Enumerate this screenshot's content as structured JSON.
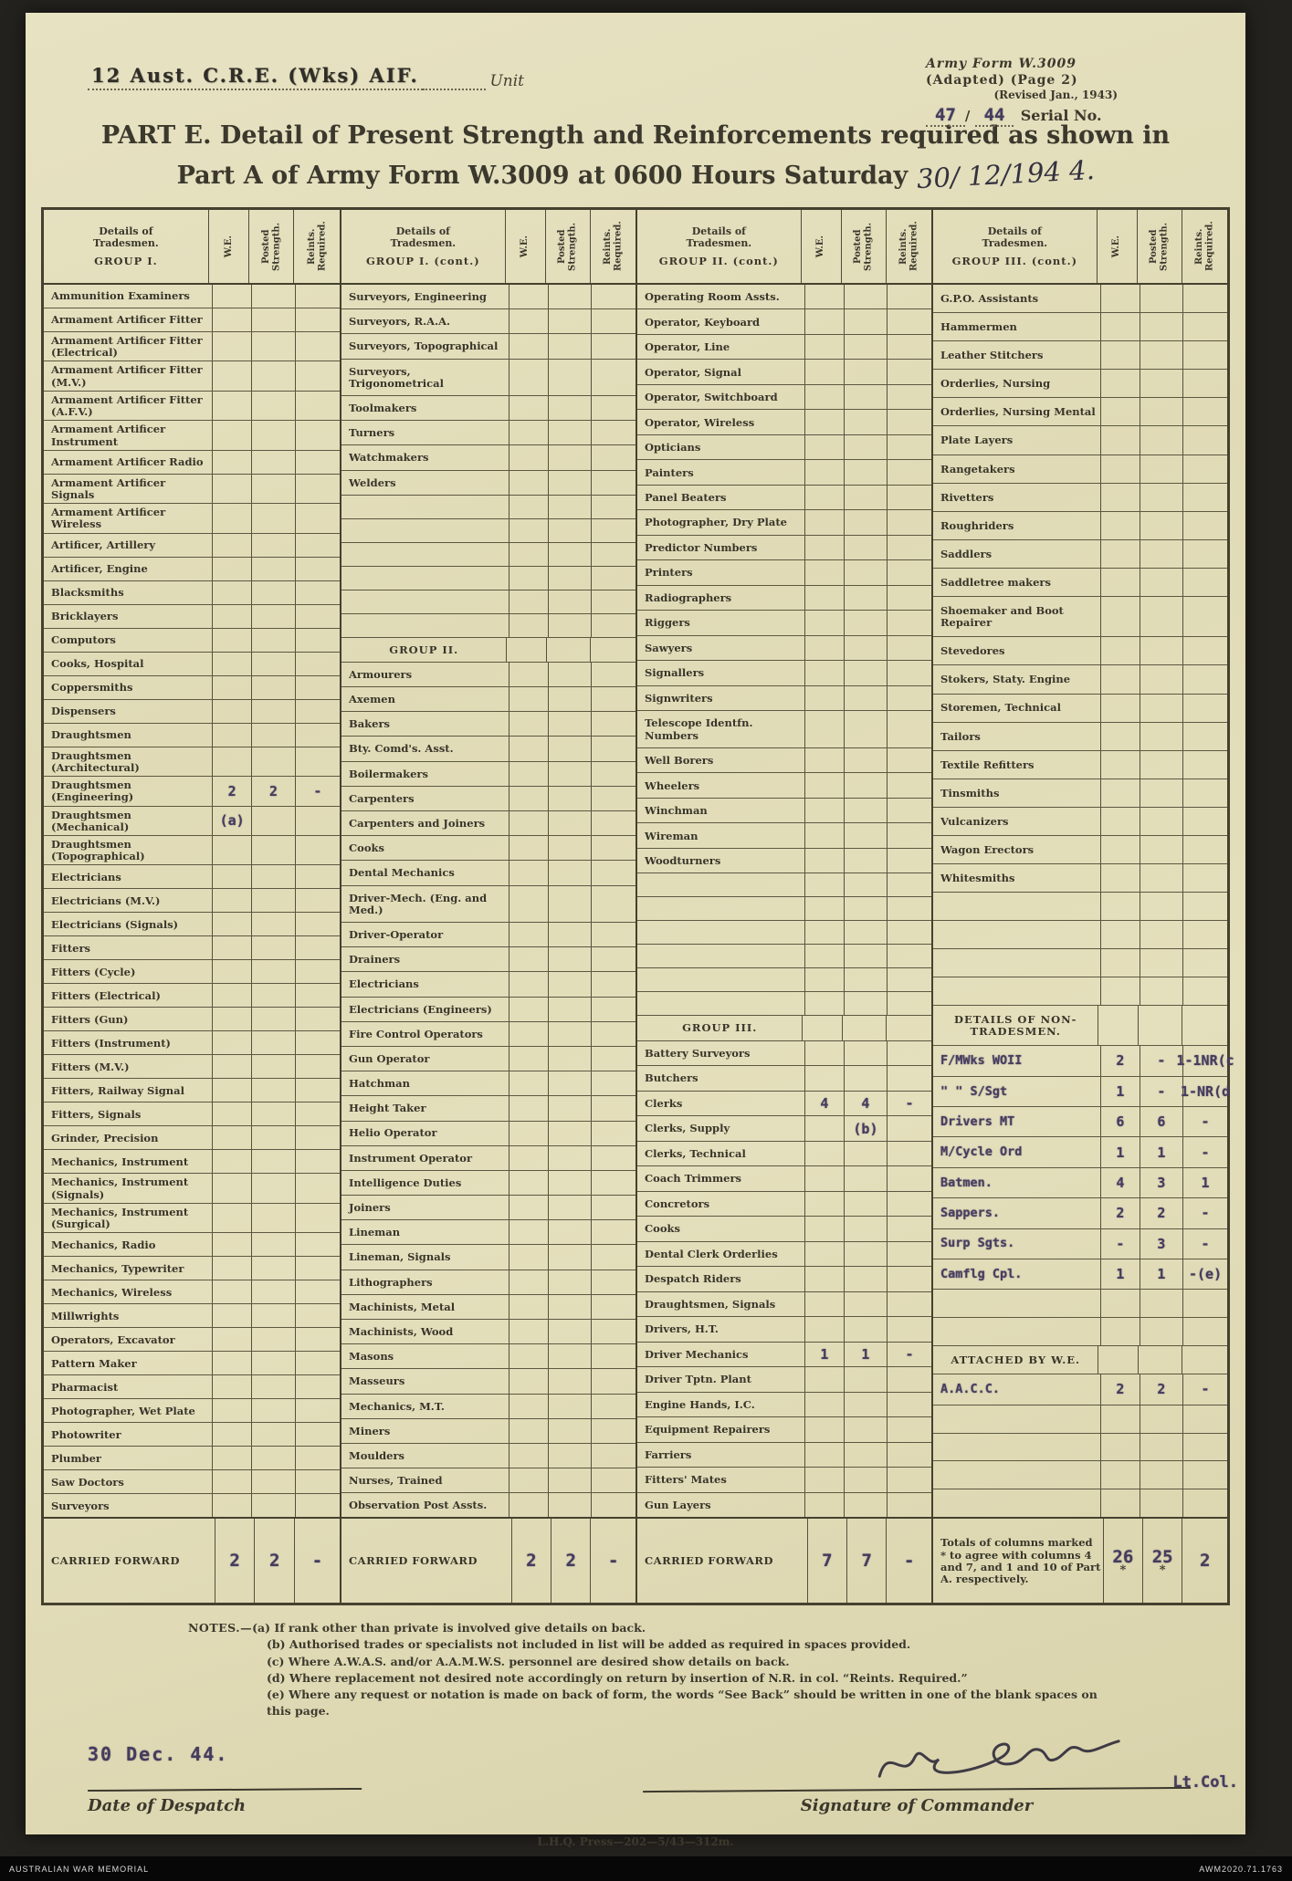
{
  "header": {
    "unit_name": "12 Aust. C.R.E. (Wks) AIF.",
    "unit_label": "Unit",
    "form_name": "Army Form W.3009",
    "form_line2": "(Adapted)  (Page 2)",
    "form_line3": "(Revised Jan., 1943)",
    "serial_value1": "47",
    "serial_value2": "44",
    "serial_label": "Serial No.",
    "title_line1": "PART E.  Detail of Present Strength and Reinforcements required as shown in",
    "title_line2_pre": "Part A of Army Form W.3009 at 0600 Hours Saturday",
    "title_date": "30/ 12/194 4."
  },
  "table": {
    "column_headers": {
      "details_line1": "Details of",
      "details_line2": "Tradesmen.",
      "we": "W.E.",
      "posted": "Posted Strength.",
      "reints": "Reints. Required."
    },
    "groups": [
      {
        "name": "GROUP I.",
        "rows": [
          {
            "t": "Ammunition Examiners"
          },
          {
            "t": "Armament Artificer Fitter"
          },
          {
            "t": "Armament Artificer Fitter (Electrical)"
          },
          {
            "t": "Armament Artificer Fitter (M.V.)"
          },
          {
            "t": "Armament Artificer Fitter (A.F.V.)"
          },
          {
            "t": "Armament Artificer Instrument"
          },
          {
            "t": "Armament Artificer Radio"
          },
          {
            "t": "Armament Artificer Signals"
          },
          {
            "t": "Armament Artificer Wireless"
          },
          {
            "t": "Artificer, Artillery"
          },
          {
            "t": "Artificer, Engine"
          },
          {
            "t": "Blacksmiths"
          },
          {
            "t": "Bricklayers"
          },
          {
            "t": "Computors"
          },
          {
            "t": "Cooks, Hospital"
          },
          {
            "t": "Coppersmiths"
          },
          {
            "t": "Dispensers"
          },
          {
            "t": "Draughtsmen"
          },
          {
            "t": "Draughtsmen (Architectural)"
          },
          {
            "t": "Draughtsmen (Engineering)",
            "we": "2",
            "p": "2",
            "r": "-"
          },
          {
            "t": "Draughtsmen (Mechanical)",
            "we": "(a)"
          },
          {
            "t": "Draughtsmen (Topographical)"
          },
          {
            "t": "Electricians"
          },
          {
            "t": "Electricians (M.V.)"
          },
          {
            "t": "Electricians (Signals)"
          },
          {
            "t": "Fitters"
          },
          {
            "t": "Fitters (Cycle)"
          },
          {
            "t": "Fitters (Electrical)"
          },
          {
            "t": "Fitters (Gun)"
          },
          {
            "t": "Fitters (Instrument)"
          },
          {
            "t": "Fitters (M.V.)"
          },
          {
            "t": "Fitters, Railway Signal"
          },
          {
            "t": "Fitters, Signals"
          },
          {
            "t": "Grinder, Precision"
          },
          {
            "t": "Mechanics, Instrument"
          },
          {
            "t": "Mechanics, Instrument (Signals)"
          },
          {
            "t": "Mechanics, Instrument (Surgical)"
          },
          {
            "t": "Mechanics, Radio"
          },
          {
            "t": "Mechanics, Typewriter"
          },
          {
            "t": "Mechanics, Wireless"
          },
          {
            "t": "Millwrights"
          },
          {
            "t": "Operators, Excavator"
          },
          {
            "t": "Pattern  Maker"
          },
          {
            "t": "Pharmacist"
          },
          {
            "t": "Photographer, Wet Plate"
          },
          {
            "t": "Photowriter"
          },
          {
            "t": "Plumber"
          },
          {
            "t": "Saw Doctors"
          },
          {
            "t": "Surveyors"
          }
        ]
      },
      {
        "name": "GROUP I. (cont.)",
        "rows": [
          {
            "t": "Surveyors, Engineering"
          },
          {
            "t": "Surveyors, R.A.A."
          },
          {
            "t": "Surveyors, Topographical"
          },
          {
            "t": "Surveyors, Trigonometrical"
          },
          {
            "t": "Toolmakers"
          },
          {
            "t": "Turners"
          },
          {
            "t": "Watchmakers"
          },
          {
            "t": "Welders"
          },
          {
            "k": "blank"
          },
          {
            "k": "blank"
          },
          {
            "k": "blank"
          },
          {
            "k": "blank"
          },
          {
            "k": "blank"
          },
          {
            "k": "blank"
          },
          {
            "t": "GROUP II.",
            "k": "section"
          },
          {
            "t": "Armourers"
          },
          {
            "t": "Axemen"
          },
          {
            "t": "Bakers"
          },
          {
            "t": "Bty. Comd's. Asst."
          },
          {
            "t": "Boilermakers"
          },
          {
            "t": "Carpenters"
          },
          {
            "t": "Carpenters and Joiners"
          },
          {
            "t": "Cooks"
          },
          {
            "t": "Dental Mechanics"
          },
          {
            "t": "Driver-Mech. (Eng. and Med.)"
          },
          {
            "t": "Driver-Operator"
          },
          {
            "t": "Drainers"
          },
          {
            "t": "Electricians"
          },
          {
            "t": "Electricians (Engineers)"
          },
          {
            "t": "Fire Control Operators"
          },
          {
            "t": "Gun Operator"
          },
          {
            "t": "Hatchman"
          },
          {
            "t": "Height Taker"
          },
          {
            "t": "Helio Operator"
          },
          {
            "t": "Instrument Operator"
          },
          {
            "t": "Intelligence Duties"
          },
          {
            "t": "Joiners"
          },
          {
            "t": "Lineman"
          },
          {
            "t": "Lineman, Signals"
          },
          {
            "t": "Lithographers"
          },
          {
            "t": "Machinists, Metal"
          },
          {
            "t": "Machinists, Wood"
          },
          {
            "t": "Masons"
          },
          {
            "t": "Masseurs"
          },
          {
            "t": "Mechanics, M.T."
          },
          {
            "t": "Miners"
          },
          {
            "t": "Moulders"
          },
          {
            "t": "Nurses, Trained"
          },
          {
            "t": "Observation Post Assts."
          }
        ]
      },
      {
        "name": "GROUP II. (cont.)",
        "rows": [
          {
            "t": "Operating Room Assts."
          },
          {
            "t": "Operator, Keyboard"
          },
          {
            "t": "Operator, Line"
          },
          {
            "t": "Operator, Signal"
          },
          {
            "t": "Operator, Switchboard"
          },
          {
            "t": "Operator, Wireless"
          },
          {
            "t": "Opticians"
          },
          {
            "t": "Painters"
          },
          {
            "t": "Panel Beaters"
          },
          {
            "t": "Photographer, Dry Plate"
          },
          {
            "t": "Predictor Numbers"
          },
          {
            "t": "Printers"
          },
          {
            "t": "Radiographers"
          },
          {
            "t": "Riggers"
          },
          {
            "t": "Sawyers"
          },
          {
            "t": "Signallers"
          },
          {
            "t": "Signwriters"
          },
          {
            "t": "Telescope Identfn. Numbers"
          },
          {
            "t": "Well Borers"
          },
          {
            "t": "Wheelers"
          },
          {
            "t": "Winchman"
          },
          {
            "t": "Wireman"
          },
          {
            "t": "Woodturners"
          },
          {
            "k": "blank"
          },
          {
            "k": "blank"
          },
          {
            "k": "blank"
          },
          {
            "k": "blank"
          },
          {
            "k": "blank"
          },
          {
            "k": "blank"
          },
          {
            "t": "GROUP III.",
            "k": "section"
          },
          {
            "t": "Battery Surveyors"
          },
          {
            "t": "Butchers"
          },
          {
            "t": "Clerks",
            "we": "4",
            "p": "4",
            "r": "-"
          },
          {
            "t": "Clerks, Supply",
            "p": "(b)"
          },
          {
            "t": "Clerks, Technical"
          },
          {
            "t": "Coach Trimmers"
          },
          {
            "t": "Concretors"
          },
          {
            "t": "Cooks"
          },
          {
            "t": "Dental Clerk Orderlies"
          },
          {
            "t": "Despatch Riders"
          },
          {
            "t": "Draughtsmen, Signals"
          },
          {
            "t": "Drivers, H.T."
          },
          {
            "t": "Driver Mechanics",
            "we": "1",
            "p": "1",
            "r": "-"
          },
          {
            "t": "Driver Tptn. Plant"
          },
          {
            "t": "Engine Hands, I.C."
          },
          {
            "t": "Equipment Repairers"
          },
          {
            "t": "Farriers"
          },
          {
            "t": "Fitters' Mates"
          },
          {
            "t": "Gun Layers"
          }
        ]
      },
      {
        "name": "GROUP III. (cont.)",
        "rows": [
          {
            "t": "G.P.O. Assistants"
          },
          {
            "t": "Hammermen"
          },
          {
            "t": "Leather Stitchers"
          },
          {
            "t": "Orderlies, Nursing"
          },
          {
            "t": "Orderlies, Nursing Mental"
          },
          {
            "t": "Plate Layers"
          },
          {
            "t": "Rangetakers"
          },
          {
            "t": "Rivetters"
          },
          {
            "t": "Roughriders"
          },
          {
            "t": "Saddlers"
          },
          {
            "t": "Saddletree makers"
          },
          {
            "t": "Shoemaker and Boot Repairer"
          },
          {
            "t": "Stevedores"
          },
          {
            "t": "Stokers, Staty. Engine"
          },
          {
            "t": "Storemen, Technical"
          },
          {
            "t": "Tailors"
          },
          {
            "t": "Textile Refitters"
          },
          {
            "t": "Tinsmiths"
          },
          {
            "t": "Vulcanizers"
          },
          {
            "t": "Wagon Erectors"
          },
          {
            "t": "Whitesmiths"
          },
          {
            "k": "blank"
          },
          {
            "k": "blank"
          },
          {
            "k": "blank"
          },
          {
            "k": "blank"
          },
          {
            "t": "DETAILS OF NON-TRADESMEN.",
            "k": "subhead"
          },
          {
            "t": "F/MWks WOII",
            "k": "typed",
            "we": "2",
            "p": "-",
            "r": "1-1NR(c"
          },
          {
            "t": "\"  \"  S/Sgt",
            "k": "typed",
            "we": "1",
            "p": "-",
            "r": "1-NR(d"
          },
          {
            "t": "Drivers MT",
            "k": "typed",
            "we": "6",
            "p": "6",
            "r": "-"
          },
          {
            "t": "M/Cycle Ord",
            "k": "typed",
            "we": "1",
            "p": "1",
            "r": "-"
          },
          {
            "t": "Batmen.",
            "k": "typed",
            "we": "4",
            "p": "3",
            "r": "1"
          },
          {
            "t": "Sappers.",
            "k": "typed",
            "we": "2",
            "p": "2",
            "r": "-"
          },
          {
            "t": "Surp Sgts.",
            "k": "typed",
            "we": "-",
            "p": "3",
            "r": "-"
          },
          {
            "t": "Camflg Cpl.",
            "k": "typed",
            "we": "1",
            "p": "1",
            "r": "-(e)"
          },
          {
            "k": "blank"
          },
          {
            "k": "blank"
          },
          {
            "t": "ATTACHED BY W.E.",
            "k": "subhead"
          },
          {
            "t": "A.A.C.C.",
            "k": "typed",
            "we": "2",
            "p": "2",
            "r": "-"
          },
          {
            "k": "blank"
          },
          {
            "k": "blank"
          },
          {
            "k": "blank"
          },
          {
            "k": "blank"
          }
        ]
      }
    ],
    "carried_forward": {
      "label": "CARRIED FORWARD",
      "totals_note": "Totals of columns marked * to agree with columns 4 and 7, and 1 and 10 of Part A. respectively.",
      "values": [
        {
          "we": "2",
          "p": "2",
          "r": "-"
        },
        {
          "we": "2",
          "p": "2",
          "r": "-"
        },
        {
          "we": "7",
          "p": "7",
          "r": "-"
        },
        {
          "we": "26",
          "p": "25",
          "r": "2",
          "we_sub": "*",
          "p_sub": "*"
        }
      ]
    }
  },
  "notes": {
    "prefix": "NOTES.—",
    "items": [
      "(a) If rank other than private is involved give details on back.",
      "(b) Authorised trades or specialists not included in list will be added as required in spaces provided.",
      "(c) Where A.W.A.S. and/or A.A.M.W.S. personnel are desired show details on back.",
      "(d) Where replacement not desired note accordingly on return by insertion of N.R. in col. “Reints. Required.”",
      "(e) Where any request or notation is made on back of form, the words “See Back” should be written in one of the blank spaces on this page."
    ]
  },
  "footer": {
    "date_stamp": "30 Dec. 44.",
    "date_label": "Date of Despatch",
    "rank": "Lt.Col.",
    "signature_label": "Signature of Commander",
    "print_line": "L.H.Q. Press—202—5/43—312m."
  },
  "archive_bar": {
    "left": "AUSTRALIAN WAR MEMORIAL",
    "right": "AWM2020.71.1763"
  }
}
